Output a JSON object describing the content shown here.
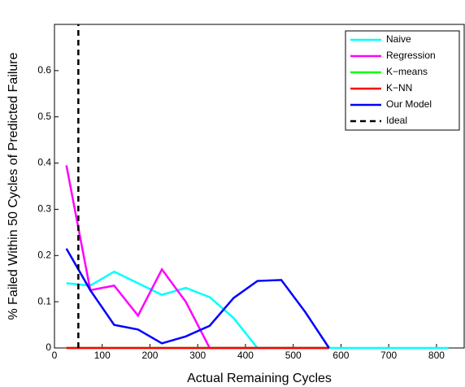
{
  "chart_data": {
    "type": "line",
    "xlabel": "Actual Remaining Cycles",
    "ylabel": "% Failed Within 50 Cycles of Predicted Failure",
    "x": [
      25,
      75,
      125,
      175,
      225,
      275,
      325,
      375,
      425,
      475,
      525,
      575,
      625,
      675,
      725,
      775,
      825
    ],
    "series": [
      {
        "name": "Naive",
        "color": "#00ffff",
        "values": [
          0.14,
          0.135,
          0.165,
          0.14,
          0.115,
          0.13,
          0.11,
          0.065,
          0,
          0,
          0,
          0,
          0,
          0,
          0,
          0,
          0
        ]
      },
      {
        "name": "Regression",
        "color": "#ff00ff",
        "values": [
          0.395,
          0.125,
          0.135,
          0.07,
          0.17,
          0.1,
          0,
          0,
          0,
          0,
          0,
          0,
          null,
          null,
          null,
          null,
          null
        ]
      },
      {
        "name": "K−means",
        "color": "#00ff00",
        "values": [
          0,
          0,
          0,
          0,
          0,
          0,
          0,
          0,
          0,
          0,
          0,
          0,
          null,
          null,
          null,
          null,
          null
        ]
      },
      {
        "name": "K−NN",
        "color": "#ff0000",
        "values": [
          0,
          0,
          0,
          0,
          0,
          0,
          0,
          0,
          0,
          0,
          0,
          0,
          null,
          null,
          null,
          null,
          null
        ]
      },
      {
        "name": "Our Model",
        "color": "#0000ff",
        "values": [
          0.215,
          0.125,
          0.05,
          0.04,
          0.01,
          0.025,
          0.048,
          0.108,
          0.145,
          0.147,
          0.078,
          0,
          null,
          null,
          null,
          null,
          null
        ]
      },
      {
        "name": "Ideal",
        "color": "#000000",
        "dashed": true,
        "x": [
          50,
          50
        ],
        "values": [
          0,
          0.7
        ]
      }
    ],
    "xlim": [
      0,
      858
    ],
    "ylim": [
      0,
      0.7
    ],
    "xticks": [
      0,
      100,
      200,
      300,
      400,
      500,
      600,
      700,
      800
    ],
    "yticks": [
      0,
      0.1,
      0.2,
      0.3,
      0.4,
      0.5,
      0.6
    ],
    "legend": "top-right"
  }
}
